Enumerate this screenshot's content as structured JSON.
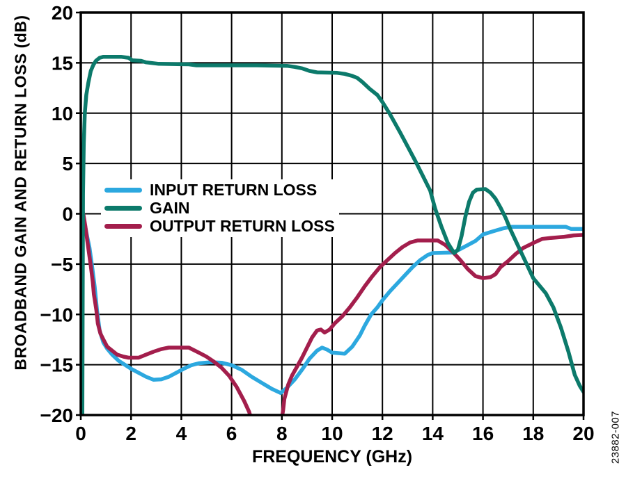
{
  "chart_data": {
    "type": "line",
    "title": "",
    "xlabel": "FREQUENCY (GHz)",
    "ylabel": "BROADBAND GAIN AND RETURN LOSS (dB)",
    "xlim": [
      0,
      20
    ],
    "ylim": [
      -20,
      20
    ],
    "xticks": [
      0,
      2,
      4,
      6,
      8,
      10,
      12,
      14,
      16,
      18,
      20
    ],
    "yticks": [
      20,
      15,
      10,
      5,
      0,
      -5,
      -10,
      -15,
      -20
    ],
    "grid": true,
    "legend_position": "inside-upper-left",
    "background_color": "#FFFFFF",
    "axis_color": "#000000",
    "grid_color": "#000000",
    "figure_number": "23882-007",
    "series": [
      {
        "name": "INPUT RETURN LOSS",
        "color": "#2CA8DF",
        "points": [
          [
            0.08,
            0.2
          ],
          [
            0.15,
            -0.9
          ],
          [
            0.25,
            -2.2
          ],
          [
            0.35,
            -3.4
          ],
          [
            0.45,
            -5.2
          ],
          [
            0.55,
            -7.2
          ],
          [
            0.65,
            -9.7
          ],
          [
            0.75,
            -11.6
          ],
          [
            0.9,
            -12.8
          ],
          [
            1.05,
            -13.4
          ],
          [
            1.25,
            -14.0
          ],
          [
            1.5,
            -14.6
          ],
          [
            1.75,
            -15.0
          ],
          [
            2.0,
            -15.4
          ],
          [
            2.3,
            -15.8
          ],
          [
            2.6,
            -16.2
          ],
          [
            2.9,
            -16.5
          ],
          [
            3.2,
            -16.45
          ],
          [
            3.5,
            -16.2
          ],
          [
            3.8,
            -15.8
          ],
          [
            4.1,
            -15.4
          ],
          [
            4.4,
            -15.05
          ],
          [
            4.7,
            -14.85
          ],
          [
            5.2,
            -14.75
          ],
          [
            5.6,
            -14.8
          ],
          [
            6.0,
            -15.05
          ],
          [
            6.4,
            -15.5
          ],
          [
            6.8,
            -16.2
          ],
          [
            7.2,
            -16.8
          ],
          [
            7.6,
            -17.4
          ],
          [
            7.95,
            -17.8
          ],
          [
            8.2,
            -17.3
          ],
          [
            8.5,
            -16.5
          ],
          [
            8.8,
            -15.5
          ],
          [
            9.1,
            -14.4
          ],
          [
            9.4,
            -13.6
          ],
          [
            9.6,
            -13.3
          ],
          [
            9.8,
            -13.5
          ],
          [
            10.0,
            -13.8
          ],
          [
            10.5,
            -13.9
          ],
          [
            10.8,
            -13.2
          ],
          [
            11.1,
            -12.1
          ],
          [
            11.3,
            -11.1
          ],
          [
            11.55,
            -10.0
          ],
          [
            11.8,
            -9.3
          ],
          [
            12.0,
            -8.6
          ],
          [
            12.3,
            -7.7
          ],
          [
            12.6,
            -6.9
          ],
          [
            12.9,
            -6.1
          ],
          [
            13.2,
            -5.3
          ],
          [
            13.5,
            -4.6
          ],
          [
            13.8,
            -4.1
          ],
          [
            14.0,
            -3.9
          ],
          [
            14.8,
            -3.85
          ],
          [
            15.1,
            -3.5
          ],
          [
            15.4,
            -3.1
          ],
          [
            15.7,
            -2.7
          ],
          [
            16.0,
            -2.05
          ],
          [
            16.4,
            -1.75
          ],
          [
            16.8,
            -1.45
          ],
          [
            17.1,
            -1.3
          ],
          [
            19.3,
            -1.3
          ],
          [
            19.5,
            -1.5
          ],
          [
            20.0,
            -1.5
          ]
        ]
      },
      {
        "name": "GAIN",
        "color": "#0C7A6B",
        "points": [
          [
            0.06,
            -21
          ],
          [
            0.07,
            -14
          ],
          [
            0.09,
            2
          ],
          [
            0.12,
            7
          ],
          [
            0.16,
            10
          ],
          [
            0.22,
            11.8
          ],
          [
            0.3,
            13
          ],
          [
            0.4,
            14.2
          ],
          [
            0.5,
            14.8
          ],
          [
            0.6,
            15.2
          ],
          [
            0.75,
            15.5
          ],
          [
            0.9,
            15.6
          ],
          [
            1.6,
            15.6
          ],
          [
            1.9,
            15.5
          ],
          [
            2.05,
            15.25
          ],
          [
            2.4,
            15.2
          ],
          [
            2.6,
            15.05
          ],
          [
            3.1,
            14.9
          ],
          [
            4.3,
            14.85
          ],
          [
            4.6,
            14.75
          ],
          [
            6.0,
            14.75
          ],
          [
            7.0,
            14.75
          ],
          [
            8.2,
            14.7
          ],
          [
            8.5,
            14.6
          ],
          [
            8.8,
            14.45
          ],
          [
            9.1,
            14.2
          ],
          [
            9.4,
            14.05
          ],
          [
            10.2,
            14.0
          ],
          [
            10.5,
            13.9
          ],
          [
            10.8,
            13.7
          ],
          [
            11.0,
            13.5
          ],
          [
            11.2,
            13.1
          ],
          [
            11.5,
            12.4
          ],
          [
            11.8,
            11.8
          ],
          [
            12.0,
            11.1
          ],
          [
            12.3,
            9.9
          ],
          [
            12.7,
            8.1
          ],
          [
            13.0,
            6.7
          ],
          [
            13.3,
            5.3
          ],
          [
            13.6,
            3.8
          ],
          [
            13.9,
            2.3
          ],
          [
            14.1,
            0.5
          ],
          [
            14.35,
            -1.3
          ],
          [
            14.6,
            -2.9
          ],
          [
            14.85,
            -3.9
          ],
          [
            15.0,
            -3.6
          ],
          [
            15.15,
            -2.2
          ],
          [
            15.3,
            -0.3
          ],
          [
            15.45,
            1.2
          ],
          [
            15.6,
            2.1
          ],
          [
            15.75,
            2.4
          ],
          [
            16.1,
            2.45
          ],
          [
            16.3,
            2.1
          ],
          [
            16.5,
            1.5
          ],
          [
            16.7,
            0.6
          ],
          [
            16.9,
            -0.4
          ],
          [
            17.1,
            -1.6
          ],
          [
            17.4,
            -3.2
          ],
          [
            17.7,
            -4.8
          ],
          [
            18.0,
            -6.4
          ],
          [
            18.5,
            -7.9
          ],
          [
            18.8,
            -9.3
          ],
          [
            19.1,
            -11.3
          ],
          [
            19.4,
            -13.7
          ],
          [
            19.65,
            -16.0
          ],
          [
            19.85,
            -17.1
          ],
          [
            20.0,
            -17.7
          ]
        ]
      },
      {
        "name": "OUTPUT RETURN LOSS",
        "color": "#A31E4C",
        "points": [
          [
            0.1,
            0
          ],
          [
            0.18,
            -1.2
          ],
          [
            0.25,
            -2.5
          ],
          [
            0.32,
            -3.8
          ],
          [
            0.4,
            -5.2
          ],
          [
            0.48,
            -6.8
          ],
          [
            0.52,
            -8.0
          ],
          [
            0.56,
            -8.6
          ],
          [
            0.62,
            -9.6
          ],
          [
            0.68,
            -10.9
          ],
          [
            0.78,
            -11.9
          ],
          [
            0.9,
            -12.5
          ],
          [
            1.05,
            -13.2
          ],
          [
            1.25,
            -13.6
          ],
          [
            1.45,
            -14.0
          ],
          [
            1.7,
            -14.2
          ],
          [
            1.9,
            -14.3
          ],
          [
            2.3,
            -14.3
          ],
          [
            2.6,
            -14.0
          ],
          [
            2.9,
            -13.7
          ],
          [
            3.2,
            -13.45
          ],
          [
            3.5,
            -13.3
          ],
          [
            4.3,
            -13.3
          ],
          [
            4.7,
            -13.8
          ],
          [
            5.0,
            -14.2
          ],
          [
            5.3,
            -14.7
          ],
          [
            5.6,
            -15.3
          ],
          [
            5.9,
            -16.1
          ],
          [
            6.2,
            -17.2
          ],
          [
            6.5,
            -18.6
          ],
          [
            6.7,
            -19.7
          ],
          [
            6.85,
            -21
          ],
          [
            7.9,
            -21.5
          ],
          [
            8.0,
            -20.3
          ],
          [
            8.05,
            -19.5
          ],
          [
            8.1,
            -18.4
          ],
          [
            8.25,
            -17.0
          ],
          [
            8.4,
            -16.1
          ],
          [
            8.6,
            -15.2
          ],
          [
            8.8,
            -14.3
          ],
          [
            9.0,
            -13.3
          ],
          [
            9.2,
            -12.3
          ],
          [
            9.4,
            -11.6
          ],
          [
            9.55,
            -11.5
          ],
          [
            9.7,
            -11.8
          ],
          [
            9.9,
            -11.5
          ],
          [
            10.1,
            -10.9
          ],
          [
            10.4,
            -10.2
          ],
          [
            10.7,
            -9.3
          ],
          [
            11.0,
            -8.3
          ],
          [
            11.3,
            -7.2
          ],
          [
            11.6,
            -6.2
          ],
          [
            11.9,
            -5.3
          ],
          [
            12.2,
            -4.6
          ],
          [
            12.5,
            -3.9
          ],
          [
            12.8,
            -3.3
          ],
          [
            13.1,
            -2.85
          ],
          [
            13.4,
            -2.65
          ],
          [
            14.2,
            -2.65
          ],
          [
            14.5,
            -3.1
          ],
          [
            14.8,
            -3.8
          ],
          [
            15.1,
            -4.6
          ],
          [
            15.4,
            -5.5
          ],
          [
            15.7,
            -6.2
          ],
          [
            16.0,
            -6.4
          ],
          [
            16.3,
            -6.3
          ],
          [
            16.5,
            -6.0
          ],
          [
            16.7,
            -5.3
          ],
          [
            17.0,
            -4.7
          ],
          [
            17.3,
            -4.0
          ],
          [
            17.6,
            -3.4
          ],
          [
            18.0,
            -2.9
          ],
          [
            18.35,
            -2.5
          ],
          [
            18.7,
            -2.4
          ],
          [
            19.2,
            -2.3
          ],
          [
            19.6,
            -2.15
          ],
          [
            20.0,
            -2.1
          ]
        ]
      }
    ]
  }
}
